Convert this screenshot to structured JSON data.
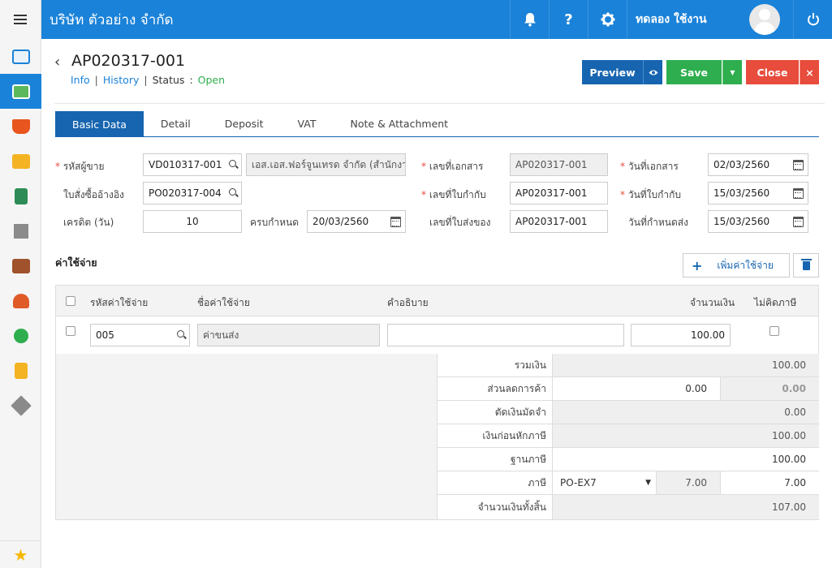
{
  "header": {
    "company": "บริษัท ตัวอย่าง จำกัด",
    "user_name": "ทดลอง ใช้งาน",
    "help_label": "?"
  },
  "doc": {
    "title": "AP020317-001",
    "info_link": "Info",
    "history_link": "History",
    "status_label": "Status",
    "status_sep": ":",
    "status_value": "Open",
    "sep": "|"
  },
  "toolbar": {
    "preview": "Preview",
    "save": "Save",
    "close": "Close",
    "close_x": "×",
    "dd_arrow": "▼"
  },
  "tabs": [
    "Basic Data",
    "Detail",
    "Deposit",
    "VAT",
    "Note & Attachment"
  ],
  "form": {
    "vendor_code_label": "รหัสผู้ขาย",
    "vendor_code": "VD010317-001",
    "vendor_name": "เอส.เอส.ฟอร์จูนเทรด จำกัด (สำนักงาน",
    "po_ref_label": "ใบสั่งซื้ออ้างอิง",
    "po_ref": "PO020317-004",
    "credit_label": "เครดิต (วัน)",
    "credit": "10",
    "due_label": "ครบกำหนด",
    "due": "20/03/2560",
    "doc_no_label": "เลขที่เอกสาร",
    "doc_no": "AP020317-001",
    "invoice_no_label": "เลขที่ใบกำกับ",
    "invoice_no": "AP020317-001",
    "delivery_no_label": "เลขที่ใบส่งของ",
    "delivery_no": "AP020317-001",
    "doc_date_label": "วันที่เอกสาร",
    "doc_date": "02/03/2560",
    "invoice_date_label": "วันที่ใบกำกับ",
    "invoice_date": "15/03/2560",
    "delivery_date_label": "วันที่กำหนดส่ง",
    "delivery_date": "15/03/2560"
  },
  "expenses": {
    "title": "ค่าใช้จ่าย",
    "add_label": "เพิ่มค่าใช้จ่าย",
    "columns": [
      "รหัสค่าใช้จ่าย",
      "ชื่อค่าใช้จ่าย",
      "คำอธิบาย",
      "จำนวนเงิน",
      "ไม่คิดภาษี"
    ],
    "rows": [
      {
        "code": "005",
        "name": "ค่าขนส่ง",
        "description": "",
        "amount": "100.00"
      }
    ]
  },
  "summary": {
    "total_label": "รวมเงิน",
    "total": "100.00",
    "discount_label": "ส่วนลดการค้า",
    "discount": "0.00",
    "discount_calc": "0.00",
    "deposit_label": "ตัดเงินมัดจำ",
    "deposit": "0.00",
    "before_tax_label": "เงินก่อนหักภาษี",
    "before_tax": "100.00",
    "tax_base_label": "ฐานภาษี",
    "tax_base": "100.00",
    "tax_label": "ภาษี",
    "tax_code": "PO-EX7",
    "tax_rate": "7.00",
    "tax_amount": "7.00",
    "grand_total_label": "จำนวนเงินทั้งสิ้น",
    "grand_total": "107.00"
  }
}
